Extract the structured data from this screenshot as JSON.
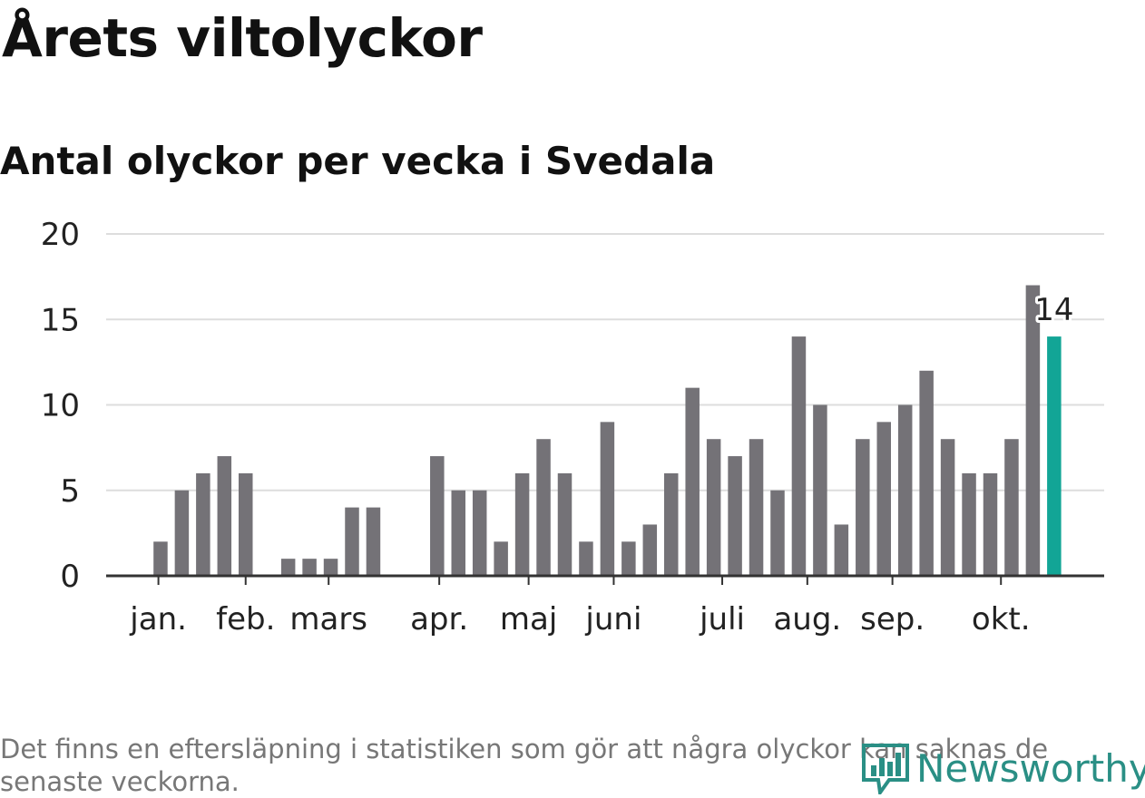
{
  "title": "Årets viltolyckor",
  "subtitle": "Antal olyckor per vecka i Svedala",
  "footnote": "Det finns en eftersläpning i statistiken som gör att några olyckor kan saknas de senaste veckorna.",
  "logo": {
    "text": "Newsworthy",
    "icon": "bar-chart-logo-icon"
  },
  "colors": {
    "bar": "#747277",
    "highlight": "#12a596",
    "grid": "#dddddd",
    "axis": "#333333",
    "logo": "#2a8f85"
  },
  "chart_data": {
    "type": "bar",
    "title": "Årets viltolyckor",
    "subtitle": "Antal olyckor per vecka i Svedala",
    "xlabel": "",
    "ylabel": "",
    "ylim": [
      0,
      20
    ],
    "yticks": [
      0,
      5,
      10,
      15,
      20
    ],
    "grid": true,
    "weeks": [
      1,
      2,
      3,
      4,
      5,
      6,
      7,
      8,
      9,
      10,
      11,
      12,
      13,
      14,
      15,
      16,
      17,
      18,
      19,
      20,
      21,
      22,
      23,
      24,
      25,
      26,
      27,
      28,
      29,
      30,
      31,
      32,
      33,
      34,
      35,
      36,
      37,
      38,
      39,
      40,
      41,
      42,
      43,
      44
    ],
    "values": [
      0,
      2,
      5,
      6,
      7,
      6,
      0,
      1,
      1,
      1,
      4,
      4,
      0,
      0,
      7,
      5,
      5,
      2,
      6,
      8,
      6,
      2,
      9,
      2,
      3,
      6,
      11,
      8,
      7,
      8,
      5,
      14,
      10,
      3,
      8,
      9,
      10,
      12,
      8,
      6,
      6,
      8,
      17,
      14
    ],
    "highlight": {
      "week": 44,
      "value": 14,
      "label": "14"
    },
    "month_labels": [
      {
        "label": "jan.",
        "week": 1.9
      },
      {
        "label": "feb.",
        "week": 6.0
      },
      {
        "label": "mars",
        "week": 9.9
      },
      {
        "label": "apr.",
        "week": 15.1
      },
      {
        "label": "maj",
        "week": 19.3
      },
      {
        "label": "juni",
        "week": 23.3
      },
      {
        "label": "juli",
        "week": 28.4
      },
      {
        "label": "aug.",
        "week": 32.4
      },
      {
        "label": "sep.",
        "week": 36.4
      },
      {
        "label": "okt.",
        "week": 41.5
      }
    ]
  }
}
